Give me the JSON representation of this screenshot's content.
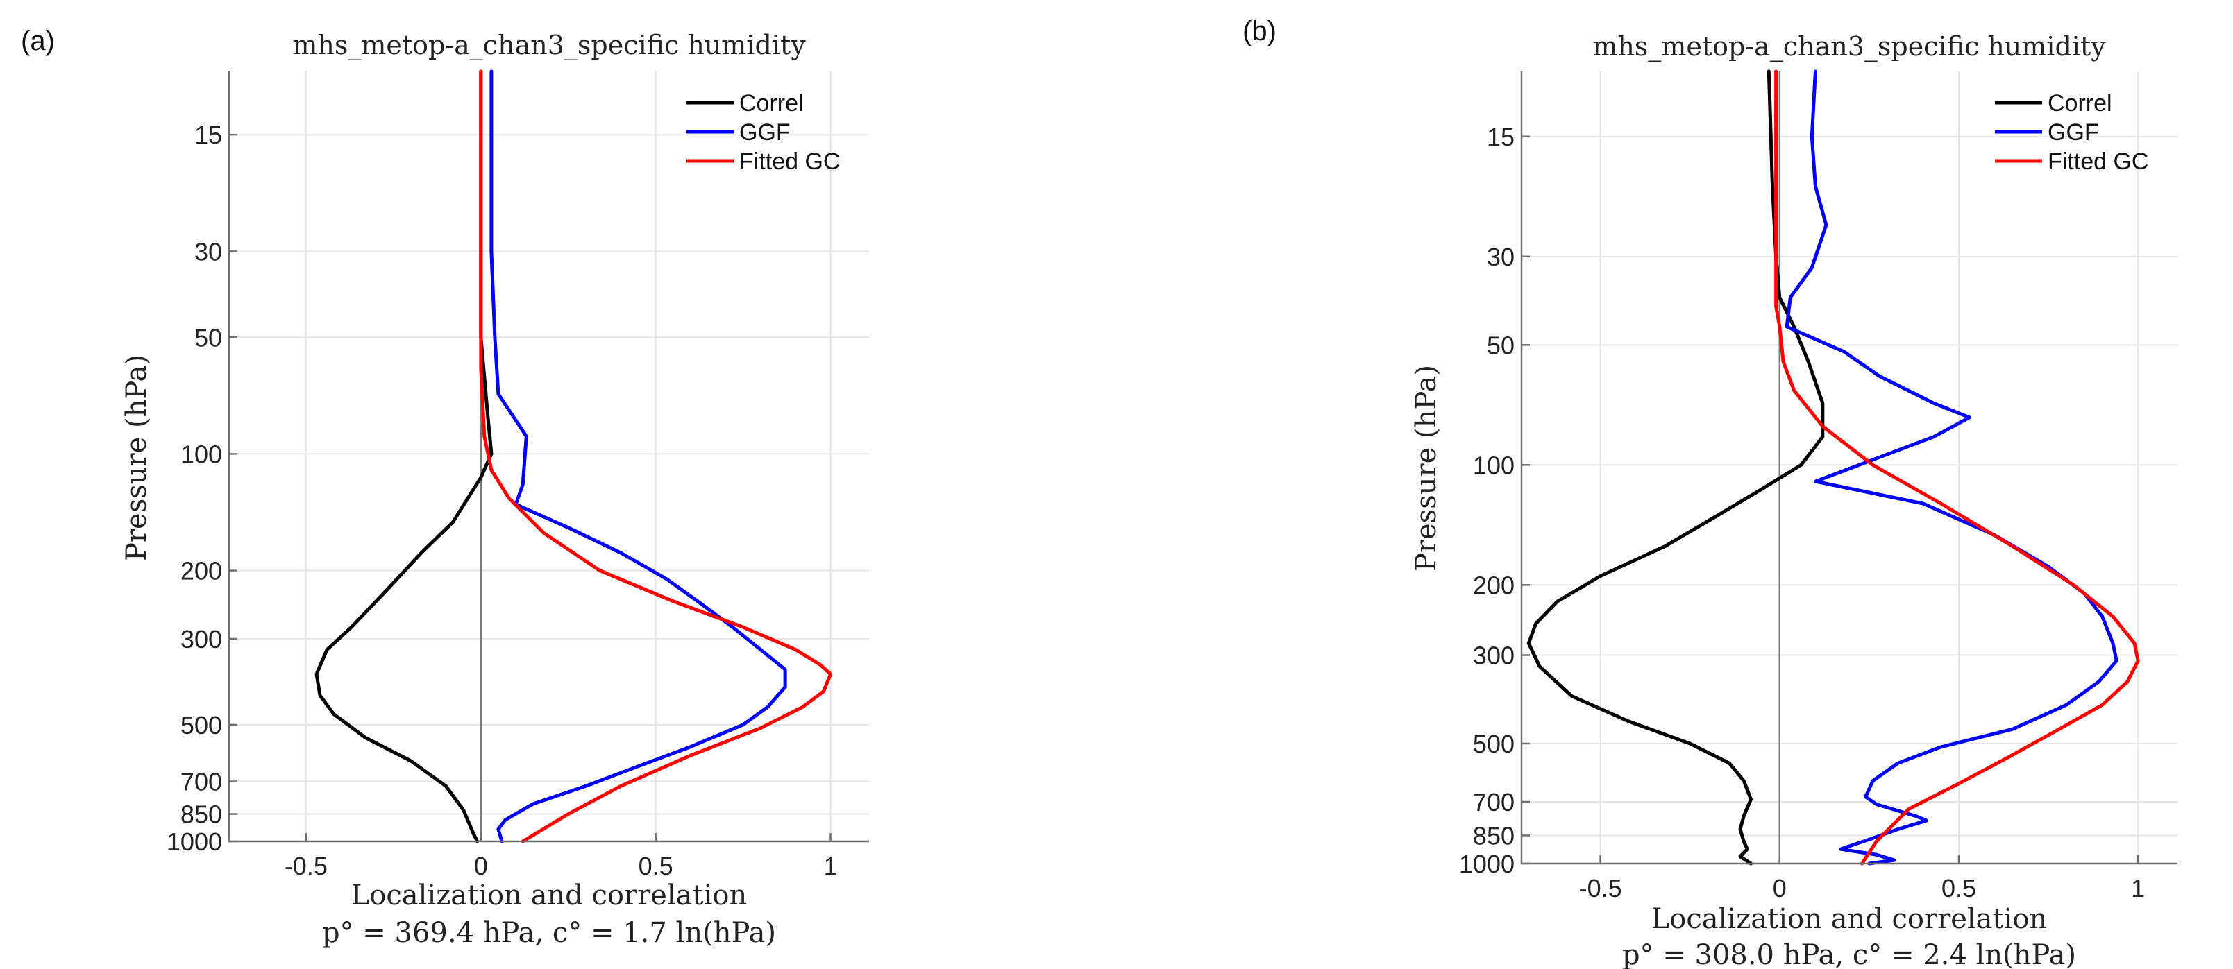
{
  "chart_data": [
    {
      "type": "line",
      "panel_label": "(a)",
      "title": "mhs_metop-a_chan3_specific humidity",
      "xlabel": "Localization and correlation",
      "ylabel": "Pressure (hPa)",
      "subtitle": "p° = 369.4 hPa, c° = 1.7 ln(hPa)",
      "xlim": [
        -0.72,
        1.11
      ],
      "ylim": [
        1000,
        10.3
      ],
      "yscale": "log",
      "xticks": [
        -0.5,
        0,
        0.5,
        1
      ],
      "xtick_labels": [
        "-0.5",
        "0",
        "0.5",
        "1"
      ],
      "yticks": [
        15,
        30,
        50,
        100,
        200,
        300,
        500,
        700,
        850,
        1000
      ],
      "ytick_labels": [
        "15",
        "30",
        "50",
        "100",
        "200",
        "300",
        "500",
        "700",
        "850",
        "1000"
      ],
      "grid": true,
      "legend_position": "top-right",
      "series": [
        {
          "name": "Correl",
          "color": "#000000",
          "points": [
            [
              0.0,
              10.3
            ],
            [
              0.0,
              50
            ],
            [
              0.02,
              80
            ],
            [
              0.03,
              100
            ],
            [
              0.0,
              115
            ],
            [
              -0.08,
              150
            ],
            [
              -0.17,
              180
            ],
            [
              -0.28,
              230
            ],
            [
              -0.37,
              280
            ],
            [
              -0.44,
              320
            ],
            [
              -0.47,
              370
            ],
            [
              -0.46,
              420
            ],
            [
              -0.42,
              470
            ],
            [
              -0.33,
              540
            ],
            [
              -0.2,
              620
            ],
            [
              -0.1,
              720
            ],
            [
              -0.05,
              830
            ],
            [
              -0.02,
              960
            ],
            [
              -0.01,
              1000
            ]
          ]
        },
        {
          "name": "GGF",
          "color": "#0000ff",
          "points": [
            [
              0.03,
              10.3
            ],
            [
              0.03,
              30
            ],
            [
              0.04,
              50
            ],
            [
              0.05,
              70
            ],
            [
              0.13,
              90
            ],
            [
              0.12,
              120
            ],
            [
              0.1,
              135
            ],
            [
              0.25,
              155
            ],
            [
              0.4,
              180
            ],
            [
              0.53,
              210
            ],
            [
              0.62,
              240
            ],
            [
              0.72,
              280
            ],
            [
              0.8,
              320
            ],
            [
              0.87,
              360
            ],
            [
              0.87,
              400
            ],
            [
              0.82,
              450
            ],
            [
              0.75,
              500
            ],
            [
              0.6,
              570
            ],
            [
              0.45,
              640
            ],
            [
              0.3,
              720
            ],
            [
              0.15,
              800
            ],
            [
              0.07,
              880
            ],
            [
              0.05,
              930
            ],
            [
              0.06,
              1000
            ]
          ]
        },
        {
          "name": "Fitted GC",
          "color": "#ff0000",
          "points": [
            [
              0.0,
              10.3
            ],
            [
              0.0,
              60
            ],
            [
              0.01,
              90
            ],
            [
              0.03,
              110
            ],
            [
              0.08,
              130
            ],
            [
              0.18,
              160
            ],
            [
              0.34,
              200
            ],
            [
              0.55,
              240
            ],
            [
              0.75,
              280
            ],
            [
              0.9,
              320
            ],
            [
              0.97,
              350
            ],
            [
              1.0,
              370
            ],
            [
              0.98,
              410
            ],
            [
              0.92,
              450
            ],
            [
              0.8,
              510
            ],
            [
              0.6,
              600
            ],
            [
              0.4,
              720
            ],
            [
              0.25,
              850
            ],
            [
              0.12,
              1000
            ]
          ]
        }
      ]
    },
    {
      "type": "line",
      "panel_label": "(b)",
      "title": "mhs_metop-a_chan3_specific humidity",
      "xlabel": "Localization and correlation",
      "ylabel": "Pressure (hPa)",
      "subtitle": "p° = 308.0 hPa, c° = 2.4 ln(hPa)",
      "xlim": [
        -0.72,
        1.11
      ],
      "ylim": [
        1000,
        10.3
      ],
      "yscale": "log",
      "xticks": [
        -0.5,
        0,
        0.5,
        1
      ],
      "xtick_labels": [
        "-0.5",
        "0",
        "0.5",
        "1"
      ],
      "yticks": [
        15,
        30,
        50,
        100,
        200,
        300,
        500,
        700,
        850,
        1000
      ],
      "ytick_labels": [
        "15",
        "30",
        "50",
        "100",
        "200",
        "300",
        "500",
        "700",
        "850",
        "1000"
      ],
      "grid": true,
      "legend_position": "top-right",
      "series": [
        {
          "name": "Correl",
          "color": "#000000",
          "points": [
            [
              -0.03,
              10.3
            ],
            [
              -0.02,
              20
            ],
            [
              -0.01,
              30
            ],
            [
              0.0,
              38
            ],
            [
              0.04,
              45
            ],
            [
              0.08,
              55
            ],
            [
              0.12,
              70
            ],
            [
              0.12,
              85
            ],
            [
              0.06,
              100
            ],
            [
              -0.05,
              115
            ],
            [
              -0.18,
              135
            ],
            [
              -0.32,
              160
            ],
            [
              -0.5,
              190
            ],
            [
              -0.62,
              220
            ],
            [
              -0.68,
              250
            ],
            [
              -0.7,
              280
            ],
            [
              -0.67,
              320
            ],
            [
              -0.58,
              380
            ],
            [
              -0.42,
              440
            ],
            [
              -0.25,
              500
            ],
            [
              -0.14,
              560
            ],
            [
              -0.1,
              620
            ],
            [
              -0.08,
              690
            ],
            [
              -0.1,
              760
            ],
            [
              -0.11,
              820
            ],
            [
              -0.1,
              880
            ],
            [
              -0.09,
              920
            ],
            [
              -0.11,
              960
            ],
            [
              -0.08,
              1000
            ]
          ]
        },
        {
          "name": "GGF",
          "color": "#0000ff",
          "points": [
            [
              0.1,
              10.3
            ],
            [
              0.09,
              15
            ],
            [
              0.1,
              20
            ],
            [
              0.13,
              25
            ],
            [
              0.09,
              32
            ],
            [
              0.03,
              38
            ],
            [
              0.02,
              45
            ],
            [
              0.18,
              52
            ],
            [
              0.28,
              60
            ],
            [
              0.43,
              70
            ],
            [
              0.53,
              76
            ],
            [
              0.43,
              85
            ],
            [
              0.1,
              110
            ],
            [
              0.4,
              125
            ],
            [
              0.6,
              150
            ],
            [
              0.75,
              180
            ],
            [
              0.85,
              210
            ],
            [
              0.9,
              240
            ],
            [
              0.93,
              280
            ],
            [
              0.94,
              310
            ],
            [
              0.89,
              350
            ],
            [
              0.8,
              400
            ],
            [
              0.65,
              460
            ],
            [
              0.45,
              510
            ],
            [
              0.33,
              560
            ],
            [
              0.26,
              620
            ],
            [
              0.24,
              680
            ],
            [
              0.27,
              710
            ],
            [
              0.38,
              760
            ],
            [
              0.41,
              780
            ],
            [
              0.33,
              820
            ],
            [
              0.25,
              870
            ],
            [
              0.17,
              920
            ],
            [
              0.27,
              950
            ],
            [
              0.32,
              980
            ],
            [
              0.25,
              1000
            ]
          ]
        },
        {
          "name": "Fitted GC",
          "color": "#ff0000",
          "points": [
            [
              -0.01,
              10.3
            ],
            [
              -0.01,
              30
            ],
            [
              -0.01,
              40
            ],
            [
              0.0,
              45
            ],
            [
              0.01,
              55
            ],
            [
              0.04,
              65
            ],
            [
              0.12,
              80
            ],
            [
              0.26,
              100
            ],
            [
              0.45,
              125
            ],
            [
              0.65,
              160
            ],
            [
              0.82,
              200
            ],
            [
              0.93,
              240
            ],
            [
              0.99,
              280
            ],
            [
              1.0,
              310
            ],
            [
              0.97,
              350
            ],
            [
              0.9,
              400
            ],
            [
              0.78,
              460
            ],
            [
              0.64,
              540
            ],
            [
              0.5,
              630
            ],
            [
              0.36,
              730
            ],
            [
              0.27,
              880
            ],
            [
              0.23,
              1000
            ]
          ]
        }
      ]
    }
  ]
}
